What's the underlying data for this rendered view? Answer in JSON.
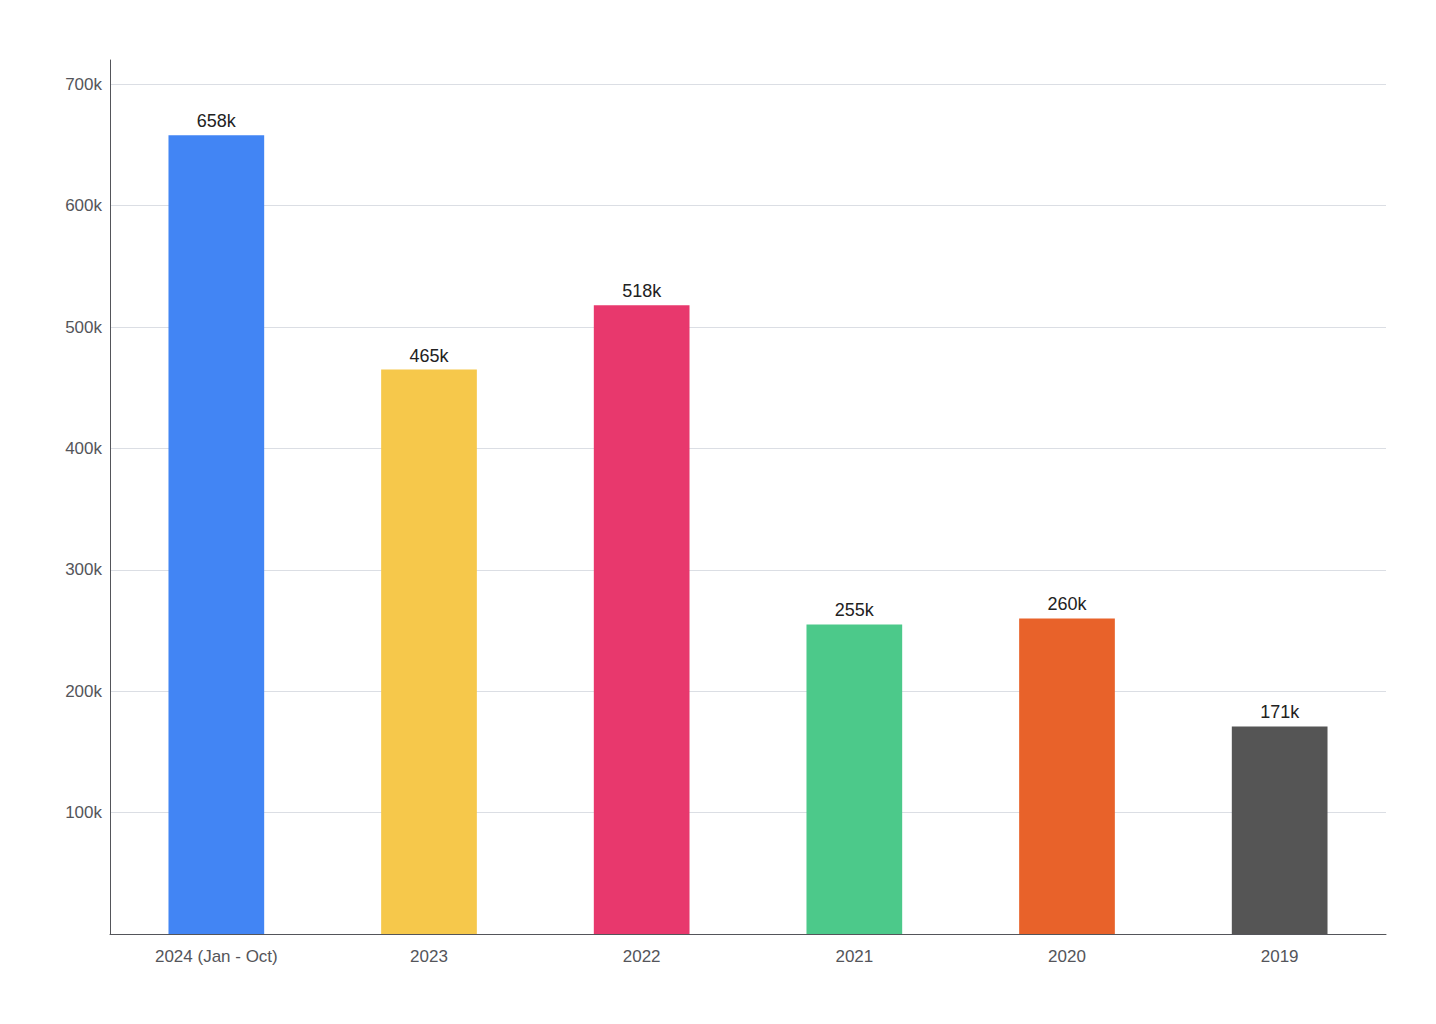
{
  "chart_data": {
    "type": "bar",
    "categories": [
      "2024 (Jan - Oct)",
      "2023",
      "2022",
      "2021",
      "2020",
      "2019"
    ],
    "values": [
      658000,
      465000,
      518000,
      255000,
      260000,
      171000
    ],
    "value_labels": [
      "658k",
      "465k",
      "518k",
      "255k",
      "260k",
      "171k"
    ],
    "data_labels": true,
    "colors": [
      "#4285F4",
      "#F6C84B",
      "#E8386D",
      "#4CC98A",
      "#E8622A",
      "#555555"
    ],
    "ylim": [
      0,
      720000
    ],
    "yticks": [
      {
        "value": 0,
        "label": null
      },
      {
        "value": 100000,
        "label": "100k"
      },
      {
        "value": 200000,
        "label": "200k"
      },
      {
        "value": 300000,
        "label": "300k"
      },
      {
        "value": 400000,
        "label": "400k"
      },
      {
        "value": 500000,
        "label": "500k"
      },
      {
        "value": 600000,
        "label": "600k"
      },
      {
        "value": 700000,
        "label": "700k"
      }
    ],
    "grid": true
  }
}
